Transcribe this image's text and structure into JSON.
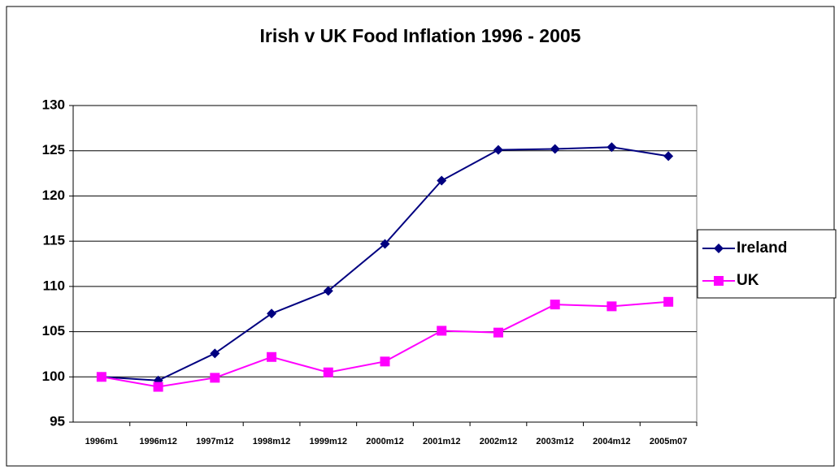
{
  "chart_data": {
    "type": "line",
    "title": "Irish v UK Food Inflation 1996 - 2005",
    "categories": [
      "1996m1",
      "1996m12",
      "1997m12",
      "1998m12",
      "1999m12",
      "2000m12",
      "2001m12",
      "2002m12",
      "2003m12",
      "2004m12",
      "2005m07"
    ],
    "series": [
      {
        "name": "Ireland",
        "color": "#000080",
        "marker": "diamond",
        "values": [
          100,
          99.6,
          102.6,
          107,
          109.5,
          114.7,
          121.7,
          125.1,
          125.2,
          125.4,
          124.4
        ]
      },
      {
        "name": "UK",
        "color": "#ff00ff",
        "marker": "square",
        "values": [
          100,
          98.9,
          99.9,
          102.2,
          100.5,
          101.7,
          105.1,
          104.9,
          108,
          107.8,
          108.3
        ]
      }
    ],
    "ylim": [
      95,
      130
    ],
    "yticks": [
      95,
      100,
      105,
      110,
      115,
      120,
      125,
      130
    ],
    "grid": true,
    "legend": "right"
  }
}
